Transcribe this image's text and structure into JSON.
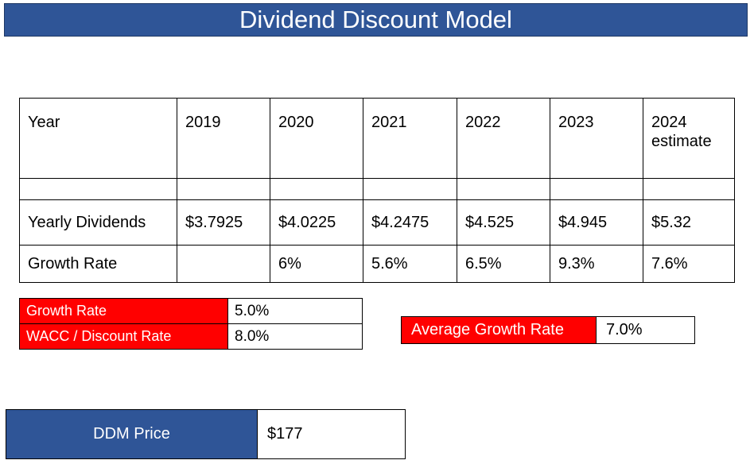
{
  "title": "Dividend Discount Model",
  "table": {
    "header": [
      "Year",
      "2019",
      "2020",
      "2021",
      "2022",
      "2023",
      "2024 estimate"
    ],
    "blank_row": [
      "",
      "",
      "",
      "",
      "",
      "",
      ""
    ],
    "dividends": [
      "Yearly Dividends",
      "$3.7925",
      "$4.0225",
      "$4.2475",
      "$4.525",
      "$4.945",
      "$5.32"
    ],
    "growth": [
      "Growth Rate",
      "",
      "6%",
      "5.6%",
      "6.5%",
      "9.3%",
      "7.6%"
    ]
  },
  "inputs": {
    "growth_label": "Growth Rate",
    "growth_value": "5.0%",
    "wacc_label": "WACC / Discount Rate",
    "wacc_value": "8.0%"
  },
  "average": {
    "label": "Average Growth Rate",
    "value": "7.0%"
  },
  "ddm": {
    "label": "DDM Price",
    "value": "$177"
  },
  "colors": {
    "title_bg": "#2f5597",
    "label_red": "#ff0000"
  }
}
